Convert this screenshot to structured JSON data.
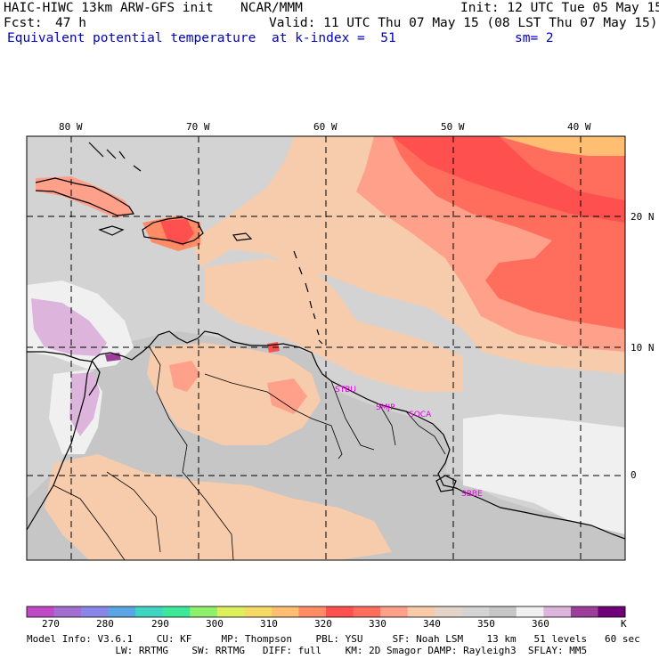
{
  "header": {
    "model_title": "HAIC-HIWC 13km ARW-GFS init",
    "org": "NCAR/MMM",
    "init": "Init: 12 UTC Tue 05 May 15",
    "fcst_label": "Fcst:",
    "fcst_value": "47 h",
    "valid": "Valid: 11 UTC Thu 07 May 15 (08 LST Thu 07 May 15)",
    "field": "Equivalent potential temperature",
    "level": "at k-index =  51",
    "smoothing": "sm= 2"
  },
  "map": {
    "lon_labels": [
      "80 W",
      "70 W",
      "60 W",
      "50 W",
      "40 W"
    ],
    "lat_labels": [
      "20 N",
      "10 N",
      "0"
    ],
    "lon_values": [
      -80,
      -70,
      -60,
      -50,
      -40
    ],
    "lat_values": [
      20,
      10,
      0
    ],
    "extent": {
      "lon_min": -83.5,
      "lon_max": -36.5,
      "lat_min": -6.5,
      "lat_max": 26.3
    },
    "stations": [
      {
        "name": "STBU",
        "lon": -58.0,
        "lat": 6.6
      },
      {
        "name": "SMJP",
        "lon": -55.0,
        "lat": 5.4
      },
      {
        "name": "SOCA",
        "lon": -52.2,
        "lat": 4.8
      },
      {
        "name": "SBBE",
        "lon": -48.3,
        "lat": -1.4
      }
    ],
    "colors": {
      "ocean_base": "#d3d3d3",
      "land_base": "#c4c4c4",
      "coast": "#000000",
      "station_text": "#e000e0"
    }
  },
  "colorbar": {
    "ticks": [
      "270",
      "280",
      "290",
      "300",
      "310",
      "320",
      "330",
      "340",
      "350",
      "360"
    ],
    "unit": "K",
    "colors": [
      "#c04ac6",
      "#a26ed0",
      "#8a86e8",
      "#5aa6e4",
      "#3fd5c2",
      "#3ee89a",
      "#8ff06c",
      "#ddf05c",
      "#f5da66",
      "#ffbe72",
      "#ff8c64",
      "#ff5050",
      "#ff6e5c",
      "#ffa08a",
      "#f9caa9",
      "#e4d4c8",
      "#d4d4d4",
      "#c6c6c6",
      "#f0f0f0",
      "#dcb4dc",
      "#9a3e9a",
      "#6e0078"
    ]
  },
  "footer": {
    "line1": "Model Info: V3.6.1    CU: KF     MP: Thompson    PBL: YSU     SF: Noah LSM    13 km   51 levels   60 sec",
    "line2": "               LW: RRTMG    SW: RRTMG   DIFF: full    KM: 2D Smagor DAMP: Rayleigh3  SFLAY: MM5"
  }
}
